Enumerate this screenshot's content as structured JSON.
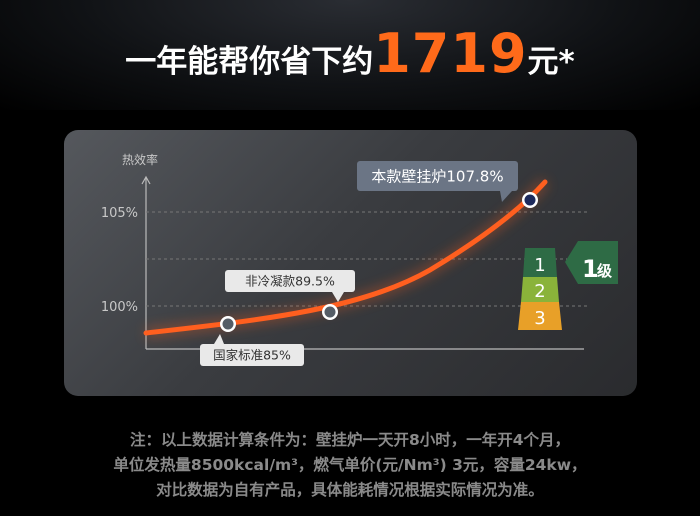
{
  "headline": {
    "prefix": "一年能帮你省下约",
    "amount": "1719",
    "suffix": "元*"
  },
  "chart_data": {
    "type": "line",
    "ylabel": "热效率",
    "ytick_labels": [
      "105%",
      "100%"
    ],
    "grid": true,
    "points": [
      {
        "label": "国家标准85%",
        "value": 85
      },
      {
        "label": "非冷凝款89.5%",
        "value": 89.5
      },
      {
        "label": "本款壁挂炉107.8%",
        "value": 107.8
      }
    ],
    "colors": {
      "curve": "#ff5f1f",
      "grade1": "#2e6b45",
      "grade2": "#8ab33a",
      "grade3": "#e8a028"
    }
  },
  "grade": {
    "levels": [
      "1",
      "2",
      "3"
    ],
    "badge": "1",
    "badge_suffix": "级"
  },
  "note": [
    "注：以上数据计算条件为：壁挂炉一天开8小时，一年开4个月，",
    "单位发热量8500kcal/m³，燃气单价(元/Nm³) 3元，容量24kw，",
    "对比数据为自有产品，具体能耗情况根据实际情况为准。"
  ]
}
